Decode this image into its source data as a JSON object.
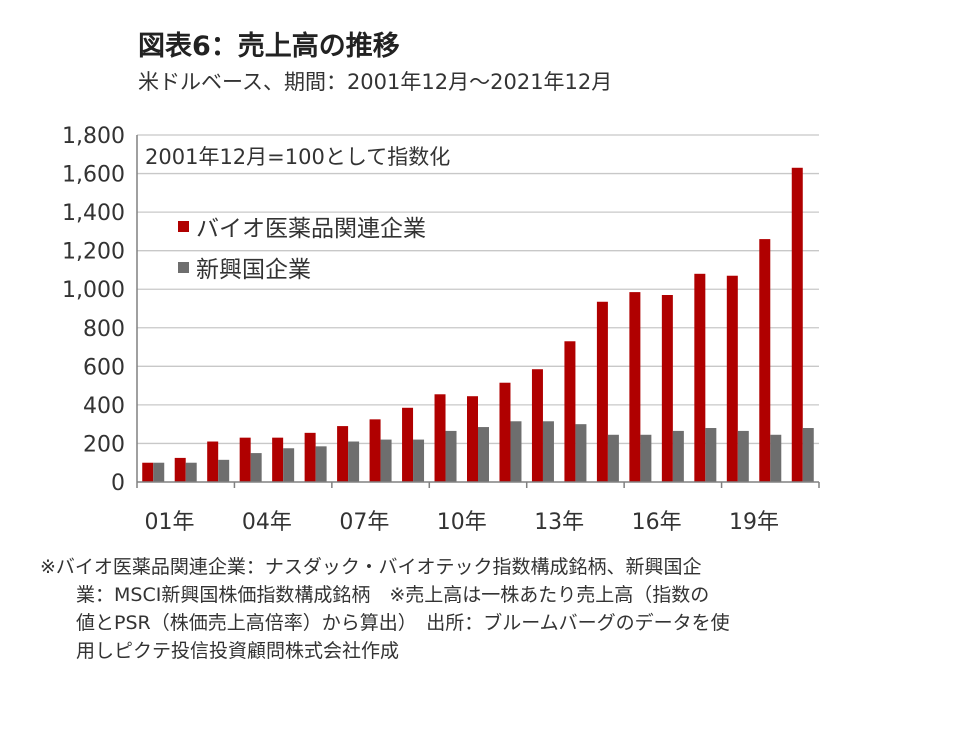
{
  "title": "図表6：売上高の推移",
  "subtitle": "米ドルベース、期間：2001年12月～2021年12月",
  "colors": {
    "bio": "#B00000",
    "emerging": "#6E6E6E",
    "grid": "#C8C8C8",
    "axis": "#808080"
  },
  "chart_data": {
    "type": "bar",
    "annotation": "2001年12月=100として指数化",
    "categories": [
      "01年",
      "02年",
      "03年",
      "04年",
      "05年",
      "06年",
      "07年",
      "08年",
      "09年",
      "10年",
      "11年",
      "12年",
      "13年",
      "14年",
      "15年",
      "16年",
      "17年",
      "18年",
      "19年",
      "20年",
      "21年"
    ],
    "x_tick_labels": [
      "01年",
      "04年",
      "07年",
      "10年",
      "13年",
      "16年",
      "19年"
    ],
    "series": [
      {
        "name": "バイオ医薬品関連企業",
        "color": "#B00000",
        "values": [
          100,
          125,
          210,
          230,
          230,
          255,
          290,
          325,
          385,
          455,
          445,
          515,
          585,
          730,
          935,
          985,
          970,
          1080,
          1070,
          1260,
          1630
        ]
      },
      {
        "name": "新興国企業",
        "color": "#6E6E6E",
        "values": [
          100,
          100,
          115,
          150,
          175,
          185,
          210,
          220,
          220,
          265,
          285,
          315,
          315,
          300,
          245,
          245,
          265,
          280,
          265,
          245,
          280
        ]
      }
    ],
    "ylim": [
      0,
      1800
    ],
    "y_ticks": [
      0,
      200,
      400,
      600,
      800,
      1000,
      1200,
      1400,
      1600,
      1800
    ],
    "y_tick_labels": [
      "0",
      "200",
      "400",
      "600",
      "800",
      "1,000",
      "1,200",
      "1,400",
      "1,600",
      "1,800"
    ],
    "grid": true,
    "legend_position": "top-left"
  },
  "note": {
    "line1": "※バイオ医薬品関連企業：ナスダック・バイオテック指数構成銘柄、新興国企",
    "line2": "業：MSCI新興国株価指数構成銘柄　※売上高は一株あたり売上高（指数の",
    "line3": "値とPSR（株価売上高倍率）から算出）　出所：ブルームバーグのデータを使",
    "line4": "用しピクテ投信投資顧問株式会社作成"
  }
}
